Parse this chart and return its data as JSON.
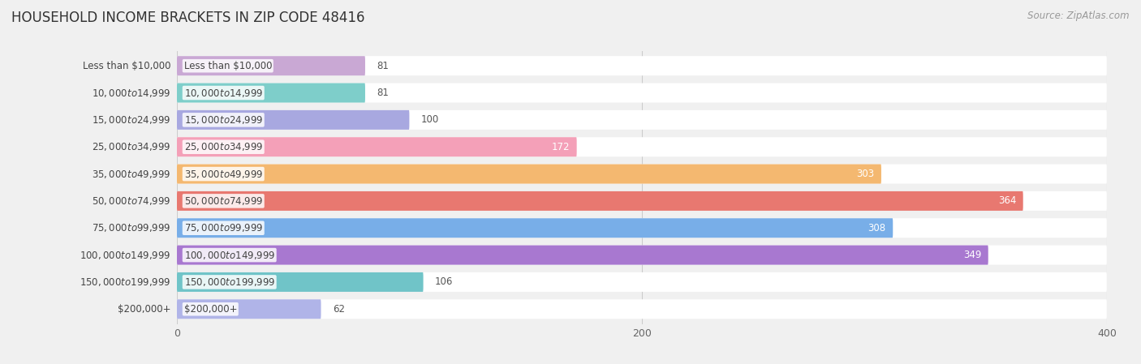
{
  "title": "HOUSEHOLD INCOME BRACKETS IN ZIP CODE 48416",
  "source": "Source: ZipAtlas.com",
  "categories": [
    "Less than $10,000",
    "$10,000 to $14,999",
    "$15,000 to $24,999",
    "$25,000 to $34,999",
    "$35,000 to $49,999",
    "$50,000 to $74,999",
    "$75,000 to $99,999",
    "$100,000 to $149,999",
    "$150,000 to $199,999",
    "$200,000+"
  ],
  "values": [
    81,
    81,
    100,
    172,
    303,
    364,
    308,
    349,
    106,
    62
  ],
  "colors": [
    "#c9a8d4",
    "#7ececa",
    "#a8a8e0",
    "#f4a0b8",
    "#f4b870",
    "#e87870",
    "#78aee8",
    "#a878d0",
    "#70c4c8",
    "#b0b4e8"
  ],
  "data_max": 400,
  "xticks": [
    0,
    200,
    400
  ],
  "background_color": "#f0f0f0",
  "row_bg_color": "#ffffff",
  "label_color_dark": "#555555",
  "label_color_white": "#ffffff",
  "title_fontsize": 12,
  "source_fontsize": 8.5,
  "value_fontsize": 8.5,
  "category_fontsize": 8.5
}
